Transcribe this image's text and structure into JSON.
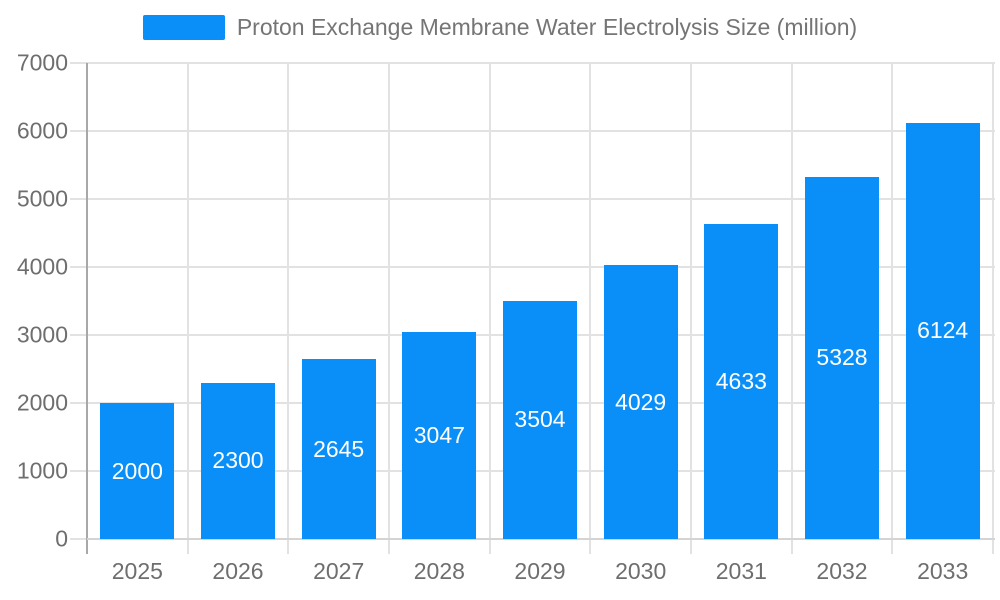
{
  "legend": {
    "label": "Proton Exchange Membrane Water Electrolysis Size (million)"
  },
  "chart_data": {
    "type": "bar",
    "title": "Proton Exchange Membrane Water Electrolysis Size (million)",
    "categories": [
      "2025",
      "2026",
      "2027",
      "2028",
      "2029",
      "2030",
      "2031",
      "2032",
      "2033"
    ],
    "values": [
      2000,
      2300,
      2645,
      3047,
      3504,
      4029,
      4633,
      5328,
      6124
    ],
    "series": [
      {
        "name": "Proton Exchange Membrane Water Electrolysis Size (million)",
        "values": [
          2000,
          2300,
          2645,
          3047,
          3504,
          4029,
          4633,
          5328,
          6124
        ]
      }
    ],
    "xlabel": "",
    "ylabel": "",
    "ylim": [
      0,
      7000
    ],
    "yticks": [
      0,
      1000,
      2000,
      3000,
      4000,
      5000,
      6000,
      7000
    ],
    "grid": true,
    "legend_position": "top",
    "value_labels_position": "inside-center",
    "colors": {
      "bar": "#0a8ff9",
      "value_label": "#ffffff",
      "axis_label": "#6e6e6e",
      "legend_text": "#757575",
      "gridline": "#e2e2e2",
      "y_axis_line": "#a8a8a8",
      "x_axis_line": "#d4d4d4",
      "background": "#ffffff"
    }
  }
}
